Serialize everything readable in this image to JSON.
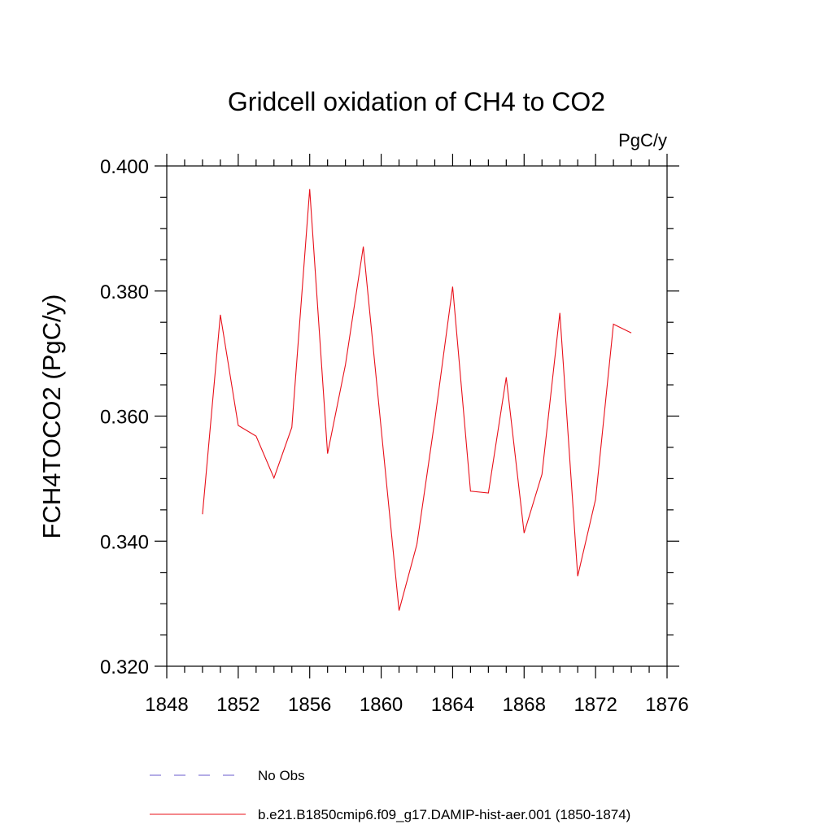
{
  "chart_data": {
    "type": "line",
    "title": "Gridcell oxidation of CH4 to CO2",
    "units": "PgC/y",
    "ylabel": "FCH4TOCO2  (PgC/y)",
    "xlabel": "",
    "xlim": [
      1848,
      1876
    ],
    "ylim": [
      0.32,
      0.4
    ],
    "xticks": [
      1848,
      1852,
      1856,
      1860,
      1864,
      1868,
      1872,
      1876
    ],
    "yticks": [
      0.32,
      0.34,
      0.36,
      0.38,
      0.4
    ],
    "ytick_labels": [
      "0.320",
      "0.340",
      "0.360",
      "0.380",
      "0.400"
    ],
    "grid": false,
    "legend_position": "bottom",
    "x": [
      1850,
      1851,
      1852,
      1853,
      1854,
      1855,
      1856,
      1857,
      1858,
      1859,
      1860,
      1861,
      1862,
      1863,
      1864,
      1865,
      1866,
      1867,
      1868,
      1869,
      1870,
      1871,
      1872,
      1873,
      1874
    ],
    "series": [
      {
        "name": "b.e21.B1850cmip6.f09_g17.DAMIP-hist-aer.001 (1850-1874)",
        "color": "#e8101a",
        "style": "solid",
        "values": [
          0.3443,
          0.3762,
          0.3585,
          0.3568,
          0.3501,
          0.3582,
          0.3963,
          0.354,
          0.3682,
          0.3871,
          0.358,
          0.3289,
          0.3395,
          0.3593,
          0.3807,
          0.348,
          0.3477,
          0.3662,
          0.3413,
          0.3507,
          0.3765,
          0.3344,
          0.3467,
          0.3747,
          0.3733
        ]
      }
    ],
    "legend": [
      {
        "label": "No Obs",
        "color": "#6a5acd",
        "style": "dashed"
      },
      {
        "label": "b.e21.B1850cmip6.f09_g17.DAMIP-hist-aer.001 (1850-1874)",
        "color": "#e8101a",
        "style": "solid"
      }
    ]
  }
}
